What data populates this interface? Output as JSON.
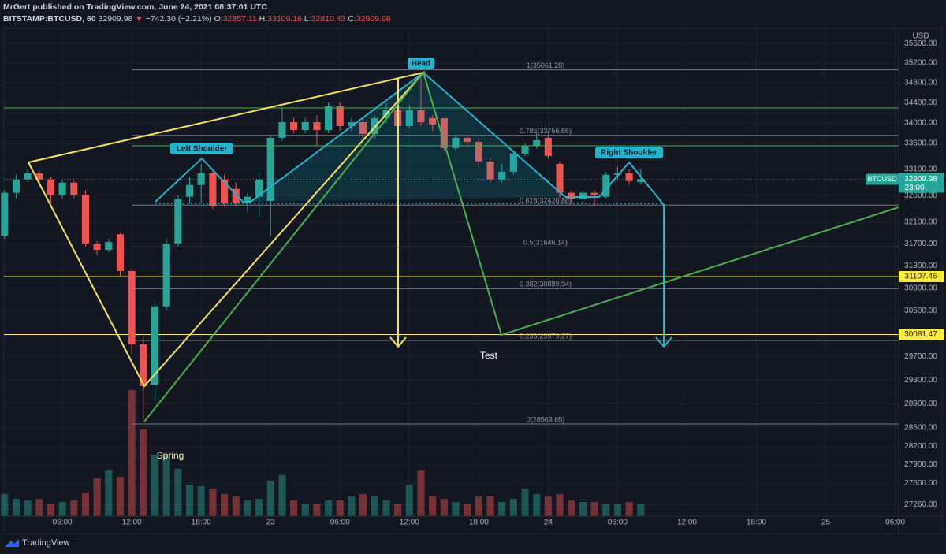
{
  "header": {
    "line1": "MrGert published on TradingView.com, June 24, 2021 08:37:01 UTC",
    "symbol": "BITSTAMP:BTCUSD, 60",
    "arrow": "▼",
    "change": "−742.30 (−2.21%)",
    "o": "O:",
    "h": "H:",
    "l": "L:",
    "c": "C:"
  },
  "footer": {
    "brand": "TradingView"
  },
  "chart_data": {
    "type": "candlestick",
    "currency": "USD",
    "symbol": "BTCUSD",
    "countdown": "23:00",
    "x": [
      1,
      2,
      3,
      4,
      5,
      6,
      7,
      8,
      9,
      10,
      11,
      12,
      13,
      14,
      15,
      16,
      17,
      18,
      19,
      20,
      21,
      22,
      23,
      24,
      25,
      26,
      27,
      28,
      29,
      30,
      31,
      32,
      33,
      34,
      35,
      36,
      37,
      38,
      39,
      40,
      41,
      42,
      43,
      44,
      45,
      46,
      47,
      48,
      49,
      50,
      51,
      52,
      53,
      54,
      55,
      56
    ],
    "open": [
      31850,
      32653,
      32905,
      33025,
      32905,
      32609,
      32846,
      32609,
      31707,
      31592,
      31879,
      31209,
      29912,
      29222,
      30575,
      31707,
      32579,
      32801,
      33025,
      32905,
      32727,
      32461,
      32579,
      32500,
      33708,
      34016,
      33861,
      34016,
      33861,
      34328,
      33939,
      34016,
      33784,
      34094,
      34250,
      33939,
      34250,
      34094,
      34094,
      33509,
      33708,
      33630,
      33250,
      32905,
      33055,
      33402,
      33554,
      33708,
      33205,
      32653,
      32535,
      32653,
      32579,
      32995,
      33025,
      32857.11
    ],
    "high": [
      32700,
      33000,
      33100,
      33080,
      32950,
      32900,
      32880,
      32700,
      31750,
      31800,
      31900,
      31250,
      30050,
      30650,
      31800,
      32600,
      32950,
      33200,
      33100,
      33000,
      32850,
      32650,
      33050,
      33750,
      34300,
      34100,
      34100,
      34150,
      34400,
      34400,
      34100,
      34100,
      34150,
      34400,
      34300,
      34350,
      35008,
      34150,
      34100,
      33750,
      33750,
      33700,
      33300,
      33200,
      33450,
      33600,
      33800,
      33850,
      33250,
      32700,
      32700,
      32700,
      33050,
      33150,
      33100,
      33109.16
    ],
    "low": [
      31800,
      32550,
      32850,
      32850,
      32450,
      32550,
      32550,
      31650,
      31500,
      31550,
      31100,
      29750,
      28650,
      28950,
      30500,
      31650,
      32450,
      32450,
      32350,
      32400,
      32400,
      32300,
      32200,
      31850,
      33650,
      33800,
      33800,
      33550,
      33800,
      33850,
      33850,
      33650,
      33700,
      34000,
      33850,
      33900,
      33950,
      33850,
      33450,
      33450,
      33550,
      33100,
      32850,
      32850,
      33000,
      33350,
      33500,
      33300,
      32550,
      32450,
      32450,
      32400,
      32550,
      32900,
      32800,
      32810.43
    ],
    "close": [
      32653,
      32905,
      33025,
      32905,
      32609,
      32846,
      32609,
      31707,
      31592,
      31736,
      31209,
      29912,
      29196,
      30575,
      31707,
      32535,
      32801,
      33025,
      32402,
      32461,
      32461,
      32579,
      32905,
      33708,
      34016,
      33861,
      34016,
      33861,
      34328,
      33939,
      34016,
      33784,
      34094,
      34250,
      33939,
      34250,
      34016,
      33970,
      33509,
      33708,
      33630,
      33250,
      32905,
      33055,
      33402,
      33554,
      33661,
      33357,
      32653,
      32535,
      32653,
      32609,
      32995,
      33025,
      32875,
      32909.98
    ],
    "volume": [
      28,
      22,
      20,
      22,
      15,
      18,
      20,
      30,
      48,
      58,
      50,
      160,
      110,
      78,
      78,
      60,
      40,
      38,
      35,
      28,
      25,
      20,
      22,
      45,
      52,
      20,
      15,
      15,
      20,
      20,
      25,
      28,
      25,
      20,
      15,
      40,
      58,
      25,
      22,
      18,
      15,
      25,
      25,
      18,
      22,
      35,
      28,
      25,
      28,
      20,
      18,
      18,
      15,
      15,
      18,
      15
    ],
    "up_color": "#26a69a",
    "down_color": "#ef5350",
    "xlim": [
      0.95,
      78.3
    ],
    "xticks": [
      {
        "value": 6,
        "label": "06:00"
      },
      {
        "value": 12,
        "label": "12:00"
      },
      {
        "value": 18,
        "label": "18:00"
      },
      {
        "value": 24,
        "label": "23"
      },
      {
        "value": 30,
        "label": "06:00"
      },
      {
        "value": 36,
        "label": "12:00"
      },
      {
        "value": 42,
        "label": "18:00"
      },
      {
        "value": 48,
        "label": "24"
      },
      {
        "value": 54,
        "label": "06:00"
      },
      {
        "value": 60,
        "label": "12:00"
      },
      {
        "value": 66,
        "label": "18:00"
      },
      {
        "value": 72,
        "label": "25"
      },
      {
        "value": 78,
        "label": "06:00"
      }
    ],
    "ylim": [
      27080,
      35880
    ],
    "log": true,
    "yticks": [
      {
        "value": 35600,
        "label": "35600.00"
      },
      {
        "value": 35200,
        "label": "35200.00"
      },
      {
        "value": 34800,
        "label": "34800.00"
      },
      {
        "value": 34400,
        "label": "34400.00"
      },
      {
        "value": 34000,
        "label": "34000.00"
      },
      {
        "value": 33600,
        "label": "33600.00"
      },
      {
        "value": 33100,
        "label": "33100.00"
      },
      {
        "value": 32600,
        "label": "32600.00"
      },
      {
        "value": 32100,
        "label": "32100.00"
      },
      {
        "value": 31700,
        "label": "31700.00"
      },
      {
        "value": 31300,
        "label": "31300.00"
      },
      {
        "value": 30900,
        "label": "30900.00"
      },
      {
        "value": 30500,
        "label": "30500.00"
      },
      {
        "value": 29700,
        "label": "29700.00"
      },
      {
        "value": 29300,
        "label": "29300.00"
      },
      {
        "value": 28900,
        "label": "28900.00"
      },
      {
        "value": 28500,
        "label": "28500.00"
      },
      {
        "value": 28200,
        "label": "28200.00"
      },
      {
        "value": 27900,
        "label": "27900.00"
      },
      {
        "value": 27600,
        "label": "27600.00"
      },
      {
        "value": 27260,
        "label": "27260.00"
      }
    ],
    "grid": true,
    "price_lines": [
      {
        "price": 31107.46,
        "color": "#ffeb3b"
      },
      {
        "price": 30081.47,
        "color": "#ffeb3b"
      }
    ],
    "fib_levels": [
      {
        "value": 35061.28,
        "label": "1(35061.28)"
      },
      {
        "value": 33756.66,
        "label": "0.786(33756.66)"
      },
      {
        "value": 32420.86,
        "label": "0.618(32420.86)"
      },
      {
        "value": 31646.14,
        "label": "0.5(31646.14)"
      },
      {
        "value": 30889.94,
        "label": "0.382(30889.94)"
      },
      {
        "value": 29979.27,
        "label": "0.236(29979.27)"
      },
      {
        "value": 28563.65,
        "label": "0(28563.65)"
      }
    ],
    "annotations": [
      "Head",
      "Left Shoulder",
      "Right Shoulder",
      "Spring",
      "Test"
    ]
  }
}
